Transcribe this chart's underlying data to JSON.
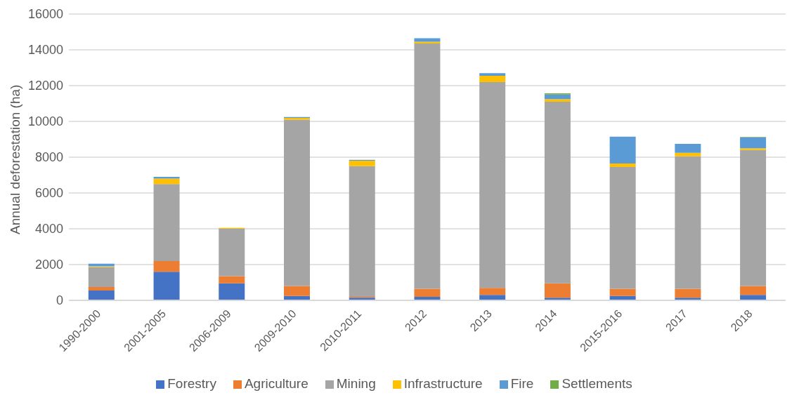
{
  "chart_data": {
    "type": "bar",
    "stacked": true,
    "ylabel": "Annual deforestation (ha)",
    "categories": [
      "1990-2000",
      "2001-2005",
      "2006-2009",
      "2009-2010",
      "2010-2011",
      "2012",
      "2013",
      "2014",
      "2015-2016",
      "2017",
      "2018"
    ],
    "series": [
      {
        "name": "Forestry",
        "color": "#4472c4",
        "values": [
          550,
          1600,
          950,
          250,
          150,
          200,
          300,
          150,
          250,
          150,
          300
        ]
      },
      {
        "name": "Agriculture",
        "color": "#ed7d31",
        "values": [
          200,
          600,
          400,
          550,
          50,
          450,
          400,
          800,
          400,
          500,
          500
        ]
      },
      {
        "name": "Mining",
        "color": "#a5a5a5",
        "values": [
          1100,
          4300,
          2650,
          9300,
          7300,
          13700,
          11500,
          10150,
          6800,
          7400,
          7600
        ]
      },
      {
        "name": "Infrastructure",
        "color": "#ffc000",
        "values": [
          50,
          300,
          50,
          100,
          300,
          100,
          350,
          150,
          200,
          200,
          100
        ]
      },
      {
        "name": "Fire",
        "color": "#5b9bd5",
        "values": [
          150,
          100,
          0,
          50,
          50,
          200,
          150,
          250,
          1500,
          500,
          600
        ]
      },
      {
        "name": "Settlements",
        "color": "#70ad47",
        "values": [
          0,
          0,
          0,
          0,
          0,
          0,
          0,
          70,
          0,
          0,
          30
        ]
      }
    ],
    "ylim": [
      0,
      16000
    ],
    "yticks": [
      0,
      2000,
      4000,
      6000,
      8000,
      10000,
      12000,
      14000,
      16000
    ],
    "grid": "y",
    "legend": "bottom"
  }
}
